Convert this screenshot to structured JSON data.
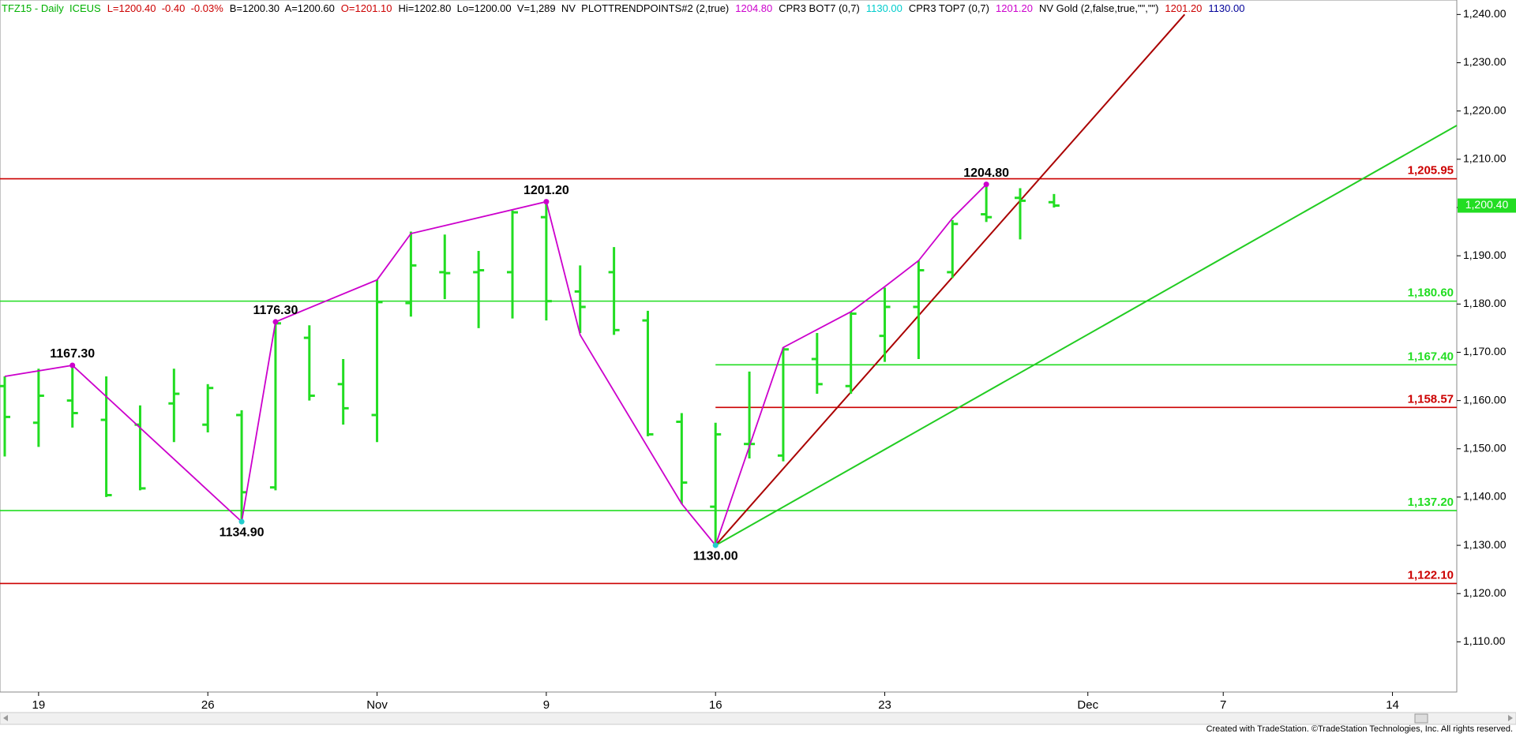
{
  "chart_data": {
    "type": "ohlc",
    "header": [
      {
        "text": "TFZ15 - Daily  ICEUS",
        "color": "#00b000"
      },
      {
        "text": "L=1200.40  -0.40  -0.03%",
        "color": "#cc0000"
      },
      {
        "text": "B=1200.30  A=1200.60",
        "color": "#000000"
      },
      {
        "text": "O=1201.10",
        "color": "#cc0000"
      },
      {
        "text": "Hi=1202.80  Lo=1200.00  V=1,289  NV  PLOTTRENDPOINTS#2 (2,true)",
        "color": "#000000"
      },
      {
        "text": "1204.80",
        "color": "#cc00cc"
      },
      {
        "text": "CPR3 BOT7 (0,7)",
        "color": "#000000"
      },
      {
        "text": "1130.00",
        "color": "#00cccc"
      },
      {
        "text": "CPR3 TOP7 (0,7)",
        "color": "#000000"
      },
      {
        "text": "1201.20",
        "color": "#cc00cc"
      },
      {
        "text": "NV Gold (2,false,true,\"\",\"\")",
        "color": "#000000"
      },
      {
        "text": "1201.20",
        "color": "#cc0000"
      },
      {
        "text": "1130.00",
        "color": "#000099"
      }
    ],
    "footer": "Created with TradeStation. ©TradeStation Technologies, Inc. All rights reserved.",
    "color": "#22dd22",
    "x": [
      -1,
      0,
      1,
      2,
      3,
      4,
      5,
      6,
      7,
      8,
      9,
      10,
      11,
      12,
      13,
      14,
      15,
      16,
      17,
      18,
      19,
      20,
      21,
      22,
      23,
      24,
      25,
      26,
      27,
      28,
      29,
      30
    ],
    "open": [
      1163,
      1155.4,
      1160,
      1156,
      1155,
      1159.4,
      1155,
      1157,
      1142,
      1173,
      1163.4,
      1157,
      1180.2,
      1186.6,
      1186.6,
      1186.6,
      1198,
      1182.6,
      1186.6,
      1176.6,
      1155.6,
      1138,
      1151,
      1148.6,
      1168.6,
      1163,
      1173.4,
      1179.4,
      1186.6,
      1198.6,
      1202,
      1201.1
    ],
    "high": [
      1165,
      1166.6,
      1167.3,
      1165,
      1159,
      1166.6,
      1163.4,
      1158,
      1176.3,
      1175.6,
      1168.6,
      1185,
      1195,
      1194.4,
      1191,
      1199.4,
      1201.2,
      1188,
      1191.8,
      1178.6,
      1157.4,
      1155.4,
      1166,
      1171,
      1174,
      1178.4,
      1183.4,
      1189,
      1197.4,
      1204.8,
      1204,
      1202.8
    ],
    "low": [
      1148.4,
      1150.4,
      1154.4,
      1140,
      1141.4,
      1151.4,
      1153.4,
      1134.9,
      1141.4,
      1160,
      1155,
      1151.4,
      1177.4,
      1181,
      1175,
      1177,
      1176.6,
      1174,
      1173.6,
      1152.6,
      1138.6,
      1130,
      1148,
      1147.4,
      1161.4,
      1161.4,
      1168,
      1168.6,
      1185.4,
      1197,
      1193.4,
      1200
    ],
    "close": [
      1156.6,
      1161,
      1157.4,
      1140.4,
      1141.8,
      1161.4,
      1162.6,
      1141,
      1176,
      1161,
      1158.4,
      1180.4,
      1188,
      1186.4,
      1187,
      1199,
      1180.6,
      1179.4,
      1174.6,
      1153,
      1143,
      1153,
      1151,
      1170.6,
      1163.4,
      1178,
      1179.4,
      1187,
      1196.6,
      1198,
      1201.4,
      1200.4
    ],
    "xlim": [
      -1.14,
      41.9
    ],
    "ylim": [
      1099.6,
      1243
    ],
    "xticks": [
      {
        "value": 0,
        "label": "19"
      },
      {
        "value": 5,
        "label": "26"
      },
      {
        "value": 10,
        "label": "Nov"
      },
      {
        "value": 15,
        "label": "9"
      },
      {
        "value": 20,
        "label": "16"
      },
      {
        "value": 25,
        "label": "23"
      },
      {
        "value": 31,
        "label": "Dec"
      },
      {
        "value": 35,
        "label": "7"
      },
      {
        "value": 40,
        "label": "14"
      }
    ],
    "yticks": [
      {
        "value": 1110,
        "label": "1,110.00"
      },
      {
        "value": 1120,
        "label": "1,120.00"
      },
      {
        "value": 1130,
        "label": "1,130.00"
      },
      {
        "value": 1140,
        "label": "1,140.00"
      },
      {
        "value": 1150,
        "label": "1,150.00"
      },
      {
        "value": 1160,
        "label": "1,160.00"
      },
      {
        "value": 1170,
        "label": "1,170.00"
      },
      {
        "value": 1180,
        "label": "1,180.00"
      },
      {
        "value": 1190,
        "label": "1,190.00"
      },
      {
        "value": 1200,
        "label": "1,200.00"
      },
      {
        "value": 1210,
        "label": "1,210.00"
      },
      {
        "value": 1220,
        "label": "1,220.00"
      },
      {
        "value": 1230,
        "label": "1,230.00"
      },
      {
        "value": 1240,
        "label": "1,240.00"
      }
    ],
    "last_price": {
      "value": 1200.4,
      "label": "1,200.40",
      "color": "#22dd22"
    },
    "levels": [
      {
        "value": 1205.95,
        "label": "1,205.95",
        "color": "#cc0000",
        "from": -1.14
      },
      {
        "value": 1180.6,
        "label": "1,180.60",
        "color": "#22dd22",
        "from": -1.14
      },
      {
        "value": 1167.4,
        "label": "1,167.40",
        "color": "#22dd22",
        "from": 20
      },
      {
        "value": 1158.57,
        "label": "1,158.57",
        "color": "#cc0000",
        "from": 20
      },
      {
        "value": 1137.2,
        "label": "1,137.20",
        "color": "#22dd22",
        "from": -1.14
      },
      {
        "value": 1122.1,
        "label": "1,122.10",
        "color": "#cc0000",
        "from": -1.14
      }
    ],
    "trendlines": [
      {
        "color": "#aa0000",
        "x": [
          20,
          33.86
        ],
        "y": [
          1130,
          1240
        ]
      },
      {
        "color": "#22cc22",
        "x": [
          20,
          41.9
        ],
        "y": [
          1130,
          1217
        ]
      }
    ],
    "swing": {
      "color": "#cc00cc",
      "x": [
        -1,
        1,
        6,
        7,
        10,
        11,
        15,
        16,
        19,
        20,
        22,
        24,
        25,
        26,
        27,
        28
      ],
      "y": [
        1165,
        1167.3,
        1134.9,
        1176.3,
        1185,
        1194.6,
        1201.2,
        1173.6,
        1138.6,
        1130,
        1171,
        1178.4,
        1183.6,
        1189,
        1197.8,
        1204.8
      ]
    },
    "pivots": {
      "x": [
        1,
        6,
        7,
        15,
        20,
        28
      ],
      "values": [
        1167.3,
        1134.9,
        1176.3,
        1201.2,
        1130,
        1204.8
      ],
      "value_labels": [
        "1167.30",
        "1134.90",
        "1176.30",
        "1201.20",
        "1130.00",
        "1204.80"
      ]
    }
  }
}
